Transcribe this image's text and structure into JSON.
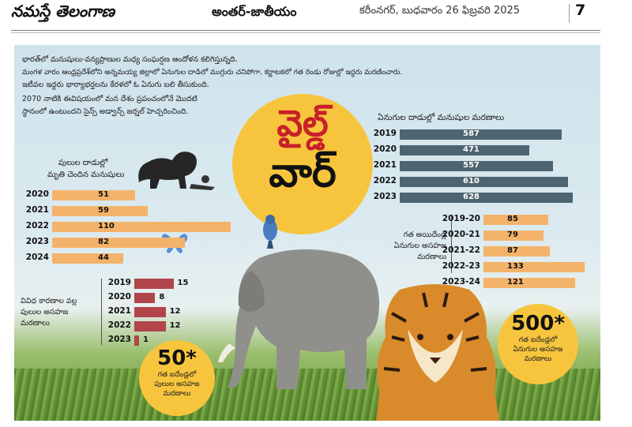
{
  "header": {
    "masthead": "నమస్తే తెలంగాణ",
    "section": "అంతర్-జాతీయం",
    "dateline": "కరీంనగర్, బుధవారం 26 ఫిబ్రవరి 2025",
    "page_number": "7"
  },
  "intro": {
    "lines": [
      "భారత్‌లో మనుషులు-వన్యప్రాణుల మధ్య సంఘర్షణ ఆందోళన కలిగిస్తున్నది.",
      "మంగళ వారం ఆంధ్రప్రదేశ్‌లోని అన్నమయ్య జిల్లాలో ఏనుగుల దాడిలో ముగ్గురు చనిపోగా, కర్ణాటకలో గత రెండు రోజుల్లో ఇద్దరు మరణించారు.",
      "ఇటీవల ఇద్దరు భార్యాభర్తలను కేరళలో ఓ ఏనుగు బలి తీసుకుంది.",
      "2070 నాటికి ఈవిషయంలో మన దేశం ప్రపంచంలోనే మొదటి",
      "స్థానంలో ఉంటుందని సైన్స్ అడ్వాన్స్ జర్నల్ హెచ్చరించింది."
    ]
  },
  "title": {
    "line1": "వైల్డ్",
    "line2": "వార్"
  },
  "colors": {
    "orange": "#f4b36a",
    "slate": "#4d6570",
    "red": "#b2454a",
    "yellow": "#f7c53d",
    "title_red": "#c8202a"
  },
  "tiger_attack_deaths": {
    "caption": [
      "పులుల దాడుల్లో",
      "మృతి చెందిన మనుషులు"
    ],
    "rows": [
      {
        "year": "2020",
        "value": 51
      },
      {
        "year": "2021",
        "value": 59
      },
      {
        "year": "2022",
        "value": 110
      },
      {
        "year": "2023",
        "value": 82
      },
      {
        "year": "2024",
        "value": 44
      }
    ]
  },
  "elephant_attack_deaths": {
    "caption": "ఏనుగుల దాడుల్లో మనుషుల మరణాలు",
    "rows": [
      {
        "year": "2019",
        "value": 587
      },
      {
        "year": "2020",
        "value": 471
      },
      {
        "year": "2021",
        "value": 557
      },
      {
        "year": "2022",
        "value": 610
      },
      {
        "year": "2023",
        "value": 628
      }
    ]
  },
  "elephant_unnatural_deaths": {
    "caption": [
      "గత అయిదేండ్ల",
      "ఏనుగుల అసహజ",
      "మరణాలు"
    ],
    "rows": [
      {
        "year": "2019-20",
        "value": 85
      },
      {
        "year": "2020-21",
        "value": 79
      },
      {
        "year": "2021-22",
        "value": 87
      },
      {
        "year": "2022-23",
        "value": 133
      },
      {
        "year": "2023-24",
        "value": 121
      }
    ]
  },
  "tiger_unnatural_deaths": {
    "caption": [
      "వివిధ కారణాల వల్ల",
      "పులుల అసహజ",
      "మరణాలు"
    ],
    "rows": [
      {
        "year": "2019",
        "value": 15
      },
      {
        "year": "2020",
        "value": 8
      },
      {
        "year": "2021",
        "value": 12
      },
      {
        "year": "2022",
        "value": 12
      },
      {
        "year": "2023",
        "value": 1
      }
    ]
  },
  "badge_tiger": {
    "number": "50*",
    "caption": [
      "గత ఐదేండ్లలో",
      "పులుల అసహజ",
      "మరణాలు"
    ]
  },
  "badge_elephant": {
    "number": "500*",
    "caption": [
      "గత ఐదేండ్లలో",
      "ఏనుగుల అసహజ",
      "మరణాలు"
    ]
  }
}
